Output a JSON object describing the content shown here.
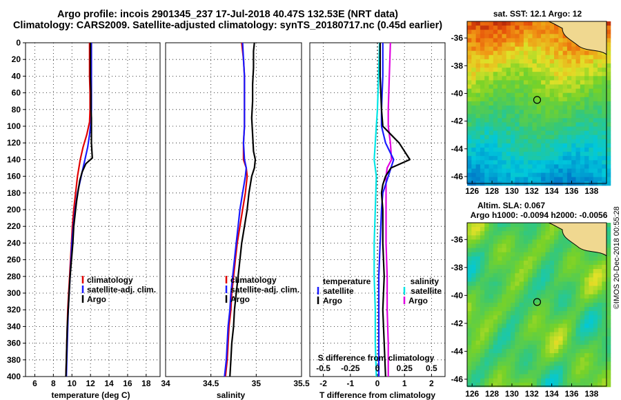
{
  "header": {
    "title_line1": "Argo profile: incois 2901345_237 17-Jul-2018 40.47S 132.53E (NRT data)",
    "title_line2": "Climatology: CARS2009. Satellite-adjusted climatology: synTS_20180717.nc (0.45d earlier)"
  },
  "colors": {
    "climatology": "#e00000",
    "satellite": "#1a1aff",
    "argo": "#000000",
    "satellite_s": "#00e5e5",
    "salinity_diff": "#e000e0"
  },
  "chart_data": [
    {
      "type": "line",
      "name": "temperature-panel",
      "xlabel": "temperature (deg C)",
      "ylabel": "",
      "xlim": [
        5,
        19.5
      ],
      "ylim": [
        0,
        400
      ],
      "xticks": [
        "6",
        "8",
        "10",
        "12",
        "14",
        "16",
        "18"
      ],
      "yticks": [
        "0",
        "20",
        "40",
        "60",
        "80",
        "100",
        "120",
        "140",
        "160",
        "180",
        "200",
        "220",
        "240",
        "260",
        "280",
        "300",
        "320",
        "340",
        "360",
        "380",
        "400"
      ],
      "legend": [
        "climatology",
        "satellite-adj. clim.",
        "Argo"
      ],
      "series": [
        {
          "name": "climatology",
          "depth": [
            0,
            20,
            40,
            60,
            80,
            95,
            110,
            125,
            140,
            160,
            180,
            200,
            220,
            240,
            260,
            280,
            300,
            320,
            340,
            360,
            380,
            400
          ],
          "values": [
            11.9,
            11.9,
            11.9,
            11.95,
            11.95,
            11.9,
            11.6,
            11.2,
            10.9,
            10.6,
            10.4,
            10.2,
            10.05,
            9.95,
            9.85,
            9.75,
            9.65,
            9.55,
            9.5,
            9.45,
            9.4,
            9.35
          ]
        },
        {
          "name": "satellite-adj. clim.",
          "depth": [
            0,
            20,
            40,
            60,
            80,
            95,
            110,
            125,
            140,
            160,
            180,
            200,
            220,
            240,
            260,
            280,
            300,
            320,
            340,
            360,
            380,
            400
          ],
          "values": [
            12.1,
            12.1,
            12.1,
            12.1,
            12.1,
            12.05,
            11.9,
            11.7,
            11.4,
            11.0,
            10.6,
            10.35,
            10.15,
            10.0,
            9.9,
            9.8,
            9.7,
            9.6,
            9.55,
            9.5,
            9.45,
            9.4
          ]
        },
        {
          "name": "Argo",
          "depth": [
            0,
            20,
            40,
            60,
            80,
            90,
            100,
            110,
            120,
            130,
            138,
            145,
            155,
            165,
            175,
            190,
            200,
            220,
            240,
            260,
            280,
            300,
            320,
            340,
            360,
            380,
            400
          ],
          "values": [
            12.0,
            12.0,
            12.0,
            12.05,
            12.05,
            12.1,
            12.1,
            12.1,
            12.1,
            12.15,
            12.2,
            11.5,
            11.1,
            10.85,
            10.7,
            10.5,
            10.4,
            10.2,
            10.1,
            9.95,
            9.8,
            9.7,
            9.6,
            9.5,
            9.45,
            9.4,
            9.35
          ]
        }
      ]
    },
    {
      "type": "line",
      "name": "salinity-panel",
      "xlabel": "salinity",
      "xlim": [
        34,
        35.5
      ],
      "ylim": [
        0,
        400
      ],
      "xticks": [
        "34",
        "34.5",
        "35",
        "35.5"
      ],
      "legend": [
        "climatology",
        "satellite-adj. clim.",
        "Argo"
      ],
      "series": [
        {
          "name": "climatology",
          "depth": [
            0,
            20,
            40,
            60,
            80,
            100,
            120,
            140,
            150,
            160,
            180,
            200,
            220,
            240,
            260,
            280,
            300,
            320,
            340,
            360,
            380,
            400
          ],
          "values": [
            34.84,
            34.86,
            34.87,
            34.87,
            34.87,
            34.87,
            34.86,
            34.86,
            34.89,
            34.9,
            34.88,
            34.85,
            34.82,
            34.79,
            34.77,
            34.75,
            34.73,
            34.72,
            34.7,
            34.69,
            34.68,
            34.66
          ]
        },
        {
          "name": "satellite-adj. clim.",
          "depth": [
            0,
            20,
            40,
            60,
            80,
            100,
            120,
            140,
            150,
            160,
            180,
            200,
            220,
            240,
            260,
            280,
            300,
            320,
            340,
            360,
            380,
            400
          ],
          "values": [
            34.85,
            34.86,
            34.87,
            34.87,
            34.87,
            34.87,
            34.86,
            34.87,
            34.89,
            34.88,
            34.85,
            34.82,
            34.8,
            34.78,
            34.76,
            34.74,
            34.72,
            34.71,
            34.69,
            34.68,
            34.67,
            34.65
          ]
        },
        {
          "name": "Argo",
          "depth": [
            0,
            10,
            30,
            50,
            70,
            90,
            110,
            130,
            140,
            150,
            160,
            180,
            200,
            220,
            240,
            260,
            280,
            300,
            320,
            340,
            360,
            380,
            400
          ],
          "values": [
            34.98,
            34.97,
            34.97,
            34.96,
            34.96,
            34.95,
            34.96,
            34.97,
            34.99,
            34.98,
            34.95,
            34.92,
            34.9,
            34.87,
            34.84,
            34.82,
            34.8,
            34.78,
            34.76,
            34.75,
            34.73,
            34.72,
            34.71
          ]
        }
      ]
    },
    {
      "type": "line",
      "name": "difference-panel",
      "xlabel": "T difference from climatology",
      "xlabel_top": "S difference from climatology",
      "xlim": [
        -2.5,
        2.5
      ],
      "ylim": [
        0,
        400
      ],
      "xticks": [
        "-2",
        "-1",
        "0",
        "1",
        "2"
      ],
      "xticks_top": [
        "-0.5",
        "-0.25",
        "0",
        "0.25",
        "0.5"
      ],
      "legend_temperature": {
        "heading": "temperature",
        "items": [
          "satellite",
          "Argo"
        ]
      },
      "legend_salinity": {
        "heading": "salinity",
        "items": [
          "satellite",
          "Argo"
        ]
      },
      "series": [
        {
          "name": "temperature satellite",
          "depth": [
            0,
            40,
            80,
            100,
            120,
            140,
            160,
            170,
            180,
            200,
            240,
            280,
            320,
            360,
            400
          ],
          "values": [
            0.2,
            0.2,
            0.15,
            0.15,
            0.3,
            0.6,
            0.4,
            0.3,
            0.2,
            0.15,
            0.1,
            0.05,
            0.05,
            0.05,
            0.05
          ]
        },
        {
          "name": "temperature Argo",
          "depth": [
            0,
            40,
            80,
            100,
            120,
            135,
            140,
            150,
            160,
            170,
            180,
            200,
            240,
            280,
            320,
            360,
            400
          ],
          "values": [
            0.1,
            0.1,
            0.15,
            0.2,
            0.8,
            1.1,
            1.2,
            0.5,
            0.3,
            0.2,
            0.15,
            0.2,
            0.2,
            0.25,
            0.2,
            0.25,
            0.3
          ]
        },
        {
          "name": "salinity satellite",
          "depth": [
            0,
            40,
            80,
            100,
            120,
            140,
            160,
            200,
            240,
            280,
            320,
            360,
            400
          ],
          "values": [
            0.02,
            0.01,
            0.0,
            -0.01,
            -0.02,
            -0.03,
            -0.01,
            -0.02,
            -0.03,
            -0.03,
            -0.02,
            -0.02,
            -0.01
          ]
        },
        {
          "name": "salinity Argo",
          "depth": [
            0,
            40,
            80,
            100,
            120,
            140,
            150,
            160,
            200,
            240,
            280,
            320,
            360,
            400
          ],
          "values": [
            0.12,
            0.11,
            0.1,
            0.1,
            0.12,
            0.13,
            0.09,
            0.08,
            0.08,
            0.08,
            0.09,
            0.09,
            0.1,
            0.1
          ]
        }
      ]
    },
    {
      "type": "heatmap",
      "name": "sst-map",
      "title": "sat. SST: 12.1 Argo: 12",
      "xlim": [
        125.5,
        139.5
      ],
      "ylim": [
        -46.5,
        -34.8
      ],
      "xticks": [
        "126",
        "128",
        "130",
        "132",
        "134",
        "136",
        "138"
      ],
      "yticks": [
        "-36",
        "-38",
        "-40",
        "-42",
        "-44",
        "-46"
      ],
      "marker": {
        "lon": 132.53,
        "lat": -40.47
      }
    },
    {
      "type": "heatmap",
      "name": "sla-map",
      "title_line1": "Altim. SLA: 0.067",
      "title_line2": "Argo h1000: -0.0094 h2000: -0.0056",
      "xlim": [
        125.5,
        139.5
      ],
      "ylim": [
        -46.5,
        -34.8
      ],
      "xticks": [
        "126",
        "128",
        "130",
        "132",
        "134",
        "136",
        "138"
      ],
      "yticks": [
        "-36",
        "-38",
        "-40",
        "-42",
        "-44",
        "-46"
      ],
      "marker": {
        "lon": 132.53,
        "lat": -40.47
      }
    }
  ],
  "footer": {
    "stamp": "©IMOS 20-Dec-2018 00:55:28"
  }
}
